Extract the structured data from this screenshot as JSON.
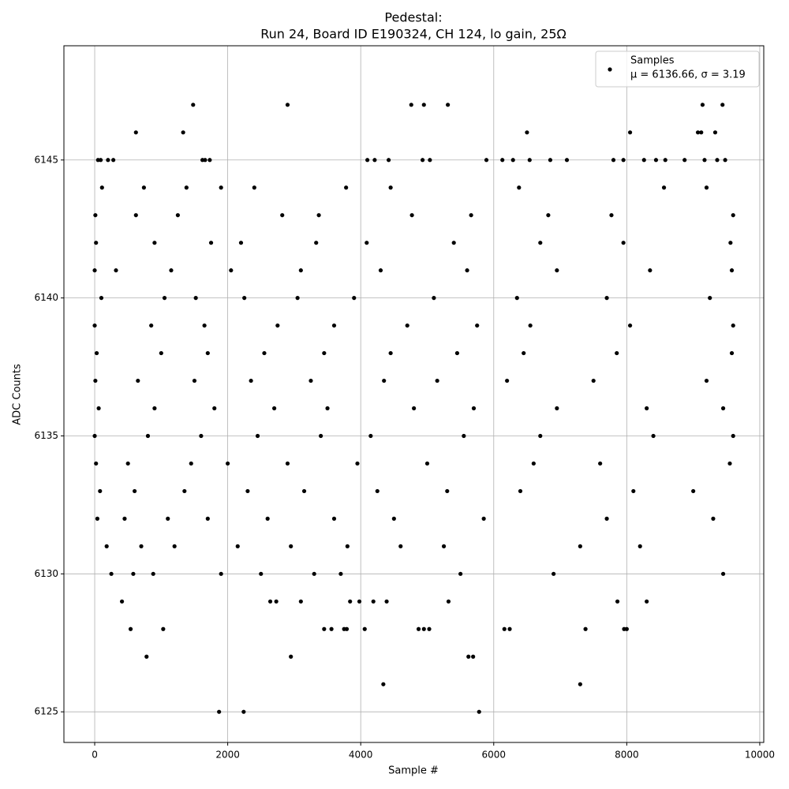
{
  "chart_data": {
    "type": "scatter",
    "title": "Pedestal:",
    "subtitle": "Run 24, Board ID E190324, CH 124, lo gain, 25Ω",
    "x_label": "Sample #",
    "y_label": "ADC Counts",
    "xlim": [
      -463,
      10060
    ],
    "ylim": [
      6123.89,
      6149.14
    ],
    "xticks": [
      0,
      2000,
      4000,
      6000,
      8000,
      10000
    ],
    "yticks": [
      6125,
      6130,
      6135,
      6140,
      6145
    ],
    "grid": true,
    "legend": "upper right",
    "legend_note": "μ = 6136.66, σ = 3.19",
    "series": [
      {
        "name": "Samples",
        "color": "#000000",
        "x": [
          1870,
          2240,
          5780,
          4340,
          7300,
          780,
          2950,
          5620,
          5690,
          540,
          1030,
          3450,
          3560,
          3750,
          3790,
          4060,
          4870,
          4950,
          5030,
          6160,
          6240,
          7380,
          7960,
          8000,
          410,
          2640,
          2730,
          3100,
          3840,
          3980,
          4190,
          4390,
          5320,
          7860,
          8300,
          1480,
          2900,
          4760,
          4950,
          5310,
          9140,
          9440,
          620,
          1330,
          6500,
          8050,
          9070,
          9120,
          9330,
          50,
          90,
          200,
          280,
          1620,
          1660,
          1730,
          4100,
          4210,
          4420,
          4930,
          5040,
          5890,
          6130,
          6290,
          6540,
          6850,
          7100,
          7800,
          7950,
          8260,
          8440,
          8580,
          8870,
          9170,
          9360,
          9480,
          250,
          580,
          880,
          1900,
          2500,
          3300,
          3700,
          5500,
          6900,
          9450,
          180,
          700,
          1200,
          2150,
          2950,
          3800,
          4600,
          5250,
          7300,
          8200,
          40,
          450,
          1100,
          1700,
          2600,
          3600,
          4500,
          5850,
          7700,
          9300,
          80,
          600,
          1350,
          2300,
          3150,
          4250,
          5300,
          6400,
          8100,
          9000,
          20,
          500,
          1450,
          2000,
          2900,
          3950,
          5000,
          6600,
          7600,
          9550,
          0,
          800,
          1600,
          2450,
          3400,
          4150,
          5550,
          6700,
          8400,
          9600,
          60,
          900,
          1800,
          2700,
          3500,
          4800,
          5700,
          6950,
          8300,
          9450,
          10,
          650,
          1500,
          2350,
          3250,
          4350,
          5150,
          6200,
          7500,
          9200,
          30,
          1000,
          1700,
          2550,
          3450,
          4450,
          5450,
          6450,
          7850,
          9580,
          0,
          850,
          1650,
          2750,
          3600,
          4700,
          5750,
          6550,
          8050,
          9600,
          100,
          1050,
          1520,
          2250,
          3050,
          3900,
          5100,
          6350,
          7700,
          9250,
          0,
          320,
          1150,
          2050,
          3100,
          4300,
          5600,
          6950,
          8350,
          9580,
          20,
          900,
          1750,
          2200,
          3330,
          4090,
          5400,
          6700,
          7950,
          9560,
          10,
          620,
          1250,
          2820,
          3370,
          4770,
          5660,
          6820,
          7770,
          9600,
          110,
          740,
          1380,
          1900,
          2400,
          3780,
          4450,
          6380,
          8560,
          9200
        ],
        "values": [
          6125,
          6125,
          6125,
          6126,
          6126,
          6127,
          6127,
          6127,
          6127,
          6128,
          6128,
          6128,
          6128,
          6128,
          6128,
          6128,
          6128,
          6128,
          6128,
          6128,
          6128,
          6128,
          6128,
          6128,
          6129,
          6129,
          6129,
          6129,
          6129,
          6129,
          6129,
          6129,
          6129,
          6129,
          6129,
          6147,
          6147,
          6147,
          6147,
          6147,
          6147,
          6147,
          6146,
          6146,
          6146,
          6146,
          6146,
          6146,
          6146,
          6145,
          6145,
          6145,
          6145,
          6145,
          6145,
          6145,
          6145,
          6145,
          6145,
          6145,
          6145,
          6145,
          6145,
          6145,
          6145,
          6145,
          6145,
          6145,
          6145,
          6145,
          6145,
          6145,
          6145,
          6145,
          6145,
          6145,
          6130,
          6130,
          6130,
          6130,
          6130,
          6130,
          6130,
          6130,
          6130,
          6130,
          6131,
          6131,
          6131,
          6131,
          6131,
          6131,
          6131,
          6131,
          6131,
          6131,
          6132,
          6132,
          6132,
          6132,
          6132,
          6132,
          6132,
          6132,
          6132,
          6132,
          6133,
          6133,
          6133,
          6133,
          6133,
          6133,
          6133,
          6133,
          6133,
          6133,
          6134,
          6134,
          6134,
          6134,
          6134,
          6134,
          6134,
          6134,
          6134,
          6134,
          6135,
          6135,
          6135,
          6135,
          6135,
          6135,
          6135,
          6135,
          6135,
          6135,
          6136,
          6136,
          6136,
          6136,
          6136,
          6136,
          6136,
          6136,
          6136,
          6136,
          6137,
          6137,
          6137,
          6137,
          6137,
          6137,
          6137,
          6137,
          6137,
          6137,
          6138,
          6138,
          6138,
          6138,
          6138,
          6138,
          6138,
          6138,
          6138,
          6138,
          6139,
          6139,
          6139,
          6139,
          6139,
          6139,
          6139,
          6139,
          6139,
          6139,
          6140,
          6140,
          6140,
          6140,
          6140,
          6140,
          6140,
          6140,
          6140,
          6140,
          6141,
          6141,
          6141,
          6141,
          6141,
          6141,
          6141,
          6141,
          6141,
          6141,
          6142,
          6142,
          6142,
          6142,
          6142,
          6142,
          6142,
          6142,
          6142,
          6142,
          6143,
          6143,
          6143,
          6143,
          6143,
          6143,
          6143,
          6143,
          6143,
          6143,
          6144,
          6144,
          6144,
          6144,
          6144,
          6144,
          6144,
          6144,
          6144,
          6144
        ]
      }
    ]
  }
}
